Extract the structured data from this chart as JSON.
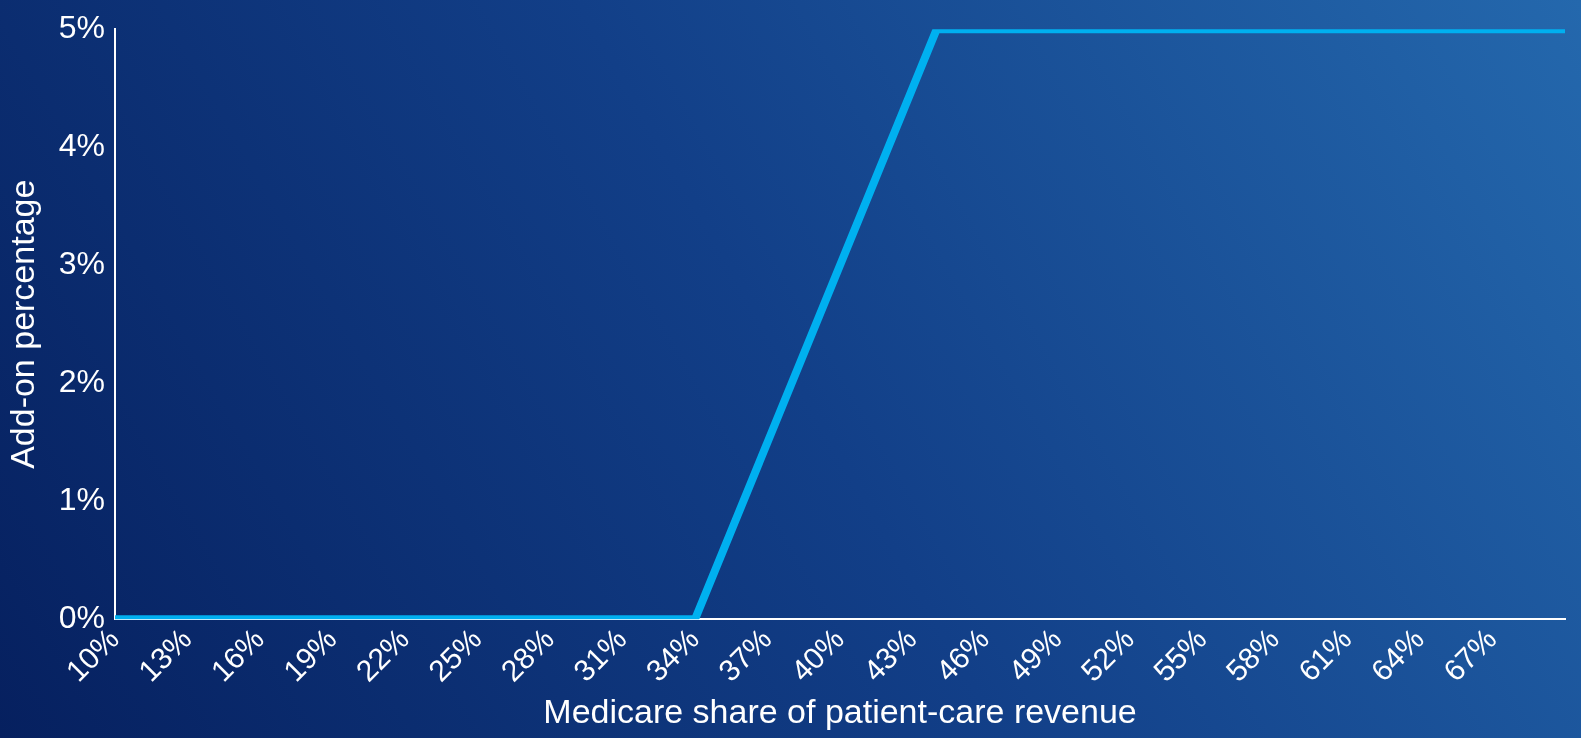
{
  "chart_data": {
    "type": "line",
    "xlabel": "Medicare share of patient-care revenue",
    "ylabel": "Add-on percentage",
    "x": [
      10,
      34,
      44,
      70
    ],
    "series": [
      {
        "color": "#00b0f0",
        "values": [
          0,
          0,
          5,
          5
        ]
      }
    ],
    "xlim": [
      10,
      70
    ],
    "xticks": [
      {
        "value": 10,
        "label": "10%"
      },
      {
        "value": 13,
        "label": "13%"
      },
      {
        "value": 16,
        "label": "16%"
      },
      {
        "value": 19,
        "label": "19%"
      },
      {
        "value": 22,
        "label": "22%"
      },
      {
        "value": 25,
        "label": "25%"
      },
      {
        "value": 28,
        "label": "28%"
      },
      {
        "value": 31,
        "label": "31%"
      },
      {
        "value": 34,
        "label": "34%"
      },
      {
        "value": 37,
        "label": "37%"
      },
      {
        "value": 40,
        "label": "40%"
      },
      {
        "value": 43,
        "label": "43%"
      },
      {
        "value": 46,
        "label": "46%"
      },
      {
        "value": 49,
        "label": "49%"
      },
      {
        "value": 52,
        "label": "52%"
      },
      {
        "value": 55,
        "label": "55%"
      },
      {
        "value": 58,
        "label": "58%"
      },
      {
        "value": 61,
        "label": "61%"
      },
      {
        "value": 64,
        "label": "64%"
      },
      {
        "value": 67,
        "label": "67%"
      }
    ],
    "ylim": [
      0,
      5
    ],
    "yticks": [
      {
        "value": 0,
        "label": "0%"
      },
      {
        "value": 1,
        "label": "1%"
      },
      {
        "value": 2,
        "label": "2%"
      },
      {
        "value": 3,
        "label": "3%"
      },
      {
        "value": 4,
        "label": "4%"
      },
      {
        "value": 5,
        "label": "5%"
      }
    ],
    "grid": false,
    "legend": false,
    "marker": "none",
    "line_style": "solid"
  }
}
